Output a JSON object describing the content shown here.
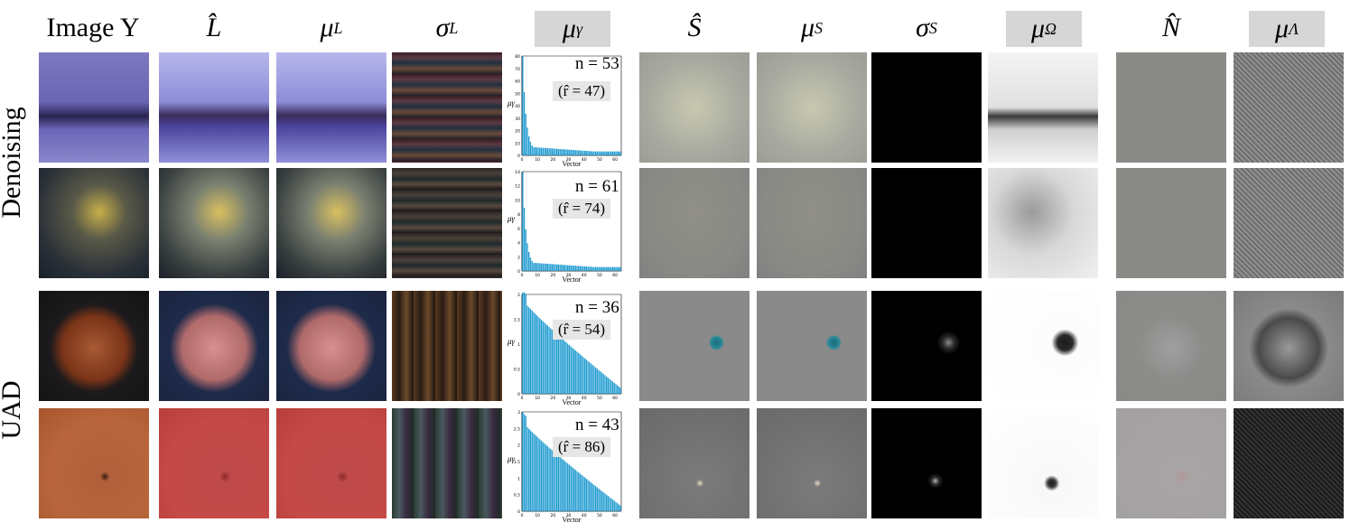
{
  "column_headers": [
    "Image Y",
    "L̂",
    "μL",
    "σL",
    "μγ",
    "Ŝ",
    "μS",
    "σS",
    "μΩ",
    "N̂",
    "μΛ"
  ],
  "header_parts": {
    "L_hat": "L̂",
    "mu": "μ",
    "sigma": "σ",
    "S_hat": "Ŝ",
    "N_hat": "N̂",
    "sub_L": "L",
    "sub_gamma": "γ",
    "sub_S": "S",
    "sub_Omega": "Ω",
    "sub_Lambda": "Λ"
  },
  "row_groups": [
    "Denoising",
    "UAD"
  ],
  "rows": [
    {
      "n": "n = 53",
      "r": "(r̂ = 47)"
    },
    {
      "n": "n = 61",
      "r": "(r̂ = 74)"
    },
    {
      "n": "n = 36",
      "r": "(r̂ = 54)"
    },
    {
      "n": "n = 43",
      "r": "(r̂ = 86)"
    }
  ],
  "chart_common": {
    "xlabel": "Vector",
    "ylabel_base": "μ",
    "ylabel_sub": "γ"
  },
  "chart_data": [
    {
      "type": "bar",
      "ylim": [
        0,
        80
      ],
      "yticks": [
        0,
        10,
        20,
        30,
        40,
        50,
        60,
        70,
        80
      ],
      "xticks": [
        0,
        10,
        20,
        30,
        40,
        50,
        60
      ],
      "shape": "steep",
      "peak": 80,
      "n": 64
    },
    {
      "type": "bar",
      "ylim": [
        0,
        14
      ],
      "yticks": [
        0,
        2,
        4,
        6,
        8,
        10,
        12,
        14
      ],
      "xticks": [
        0,
        10,
        20,
        30,
        40,
        50,
        60
      ],
      "shape": "steep",
      "peak": 14,
      "n": 64
    },
    {
      "type": "bar",
      "ylim": [
        0,
        2.0
      ],
      "yticks": [
        0.0,
        0.5,
        1.0,
        1.5,
        2.0
      ],
      "xticks": [
        0,
        10,
        20,
        30,
        40,
        50,
        60
      ],
      "shape": "gradual",
      "peak": 2.1,
      "n": 64
    },
    {
      "type": "bar",
      "ylim": [
        0,
        3.0
      ],
      "yticks": [
        0.0,
        0.5,
        1.0,
        1.5,
        2.0,
        2.5,
        3.0
      ],
      "xticks": [
        0,
        10,
        20,
        30,
        40,
        50,
        60
      ],
      "shape": "gradual",
      "peak": 3.0,
      "n": 64
    }
  ],
  "colors": {
    "bar": "#1f9bd0",
    "header_shade": "#d6d6d6"
  }
}
